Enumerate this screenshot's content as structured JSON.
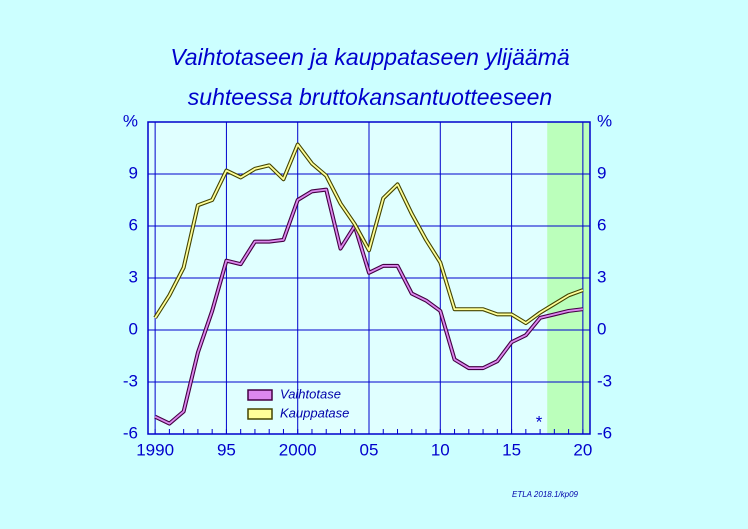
{
  "chart_data": {
    "type": "line",
    "title_lines": [
      "Vaihtotaseen  ja  kauppataseen  ylijäämä",
      "suhteessa  bruttokansantuotteeseen"
    ],
    "x": [
      1990,
      1991,
      1992,
      1993,
      1994,
      1995,
      1996,
      1997,
      1998,
      1999,
      2000,
      2001,
      2002,
      2003,
      2004,
      2005,
      2006,
      2007,
      2008,
      2009,
      2010,
      2011,
      2012,
      2013,
      2014,
      2015,
      2016,
      2017,
      2018,
      2019,
      2020
    ],
    "series": [
      {
        "name": "Vaihtotase",
        "color": "#dd88ee",
        "outline": "#440044",
        "values": [
          -5.0,
          -5.4,
          -4.7,
          -1.3,
          1.1,
          4.0,
          3.8,
          5.1,
          5.1,
          5.2,
          7.5,
          8.0,
          8.1,
          4.7,
          6.0,
          3.3,
          3.7,
          3.7,
          2.1,
          1.7,
          1.1,
          -1.7,
          -2.2,
          -2.2,
          -1.8,
          -0.7,
          -0.3,
          0.7,
          0.9,
          1.1,
          1.2
        ]
      },
      {
        "name": "Kauppatase",
        "color": "#ffff99",
        "outline": "#444400",
        "values": [
          0.7,
          2.0,
          3.6,
          7.2,
          7.5,
          9.2,
          8.8,
          9.3,
          9.5,
          8.7,
          10.7,
          9.6,
          8.9,
          7.3,
          6.1,
          4.6,
          7.6,
          8.4,
          6.7,
          5.2,
          3.9,
          1.2,
          1.2,
          1.2,
          0.9,
          0.9,
          0.4,
          1.0,
          1.5,
          2.0,
          2.3
        ]
      }
    ],
    "xlim": [
      1989.5,
      2020.5
    ],
    "xticks": [
      1990,
      {
        "value": 1995,
        "label": "95"
      },
      2000,
      {
        "value": 2005,
        "label": "05"
      },
      {
        "value": 2010,
        "label": "10"
      },
      {
        "value": 2015,
        "label": "15"
      },
      {
        "value": 2020,
        "label": "20"
      }
    ],
    "ylim": [
      -6,
      12
    ],
    "yticks": [
      -6,
      -3,
      0,
      3,
      6,
      9,
      {
        "value": 12,
        "label": "%"
      }
    ],
    "grid": true,
    "grid_color": "#0000cc",
    "shaded_xrange": [
      2017.5,
      2020.5
    ],
    "shade_color": "#bbffbb",
    "annotation": "*",
    "source": "ETLA 2018.1/kp09"
  }
}
